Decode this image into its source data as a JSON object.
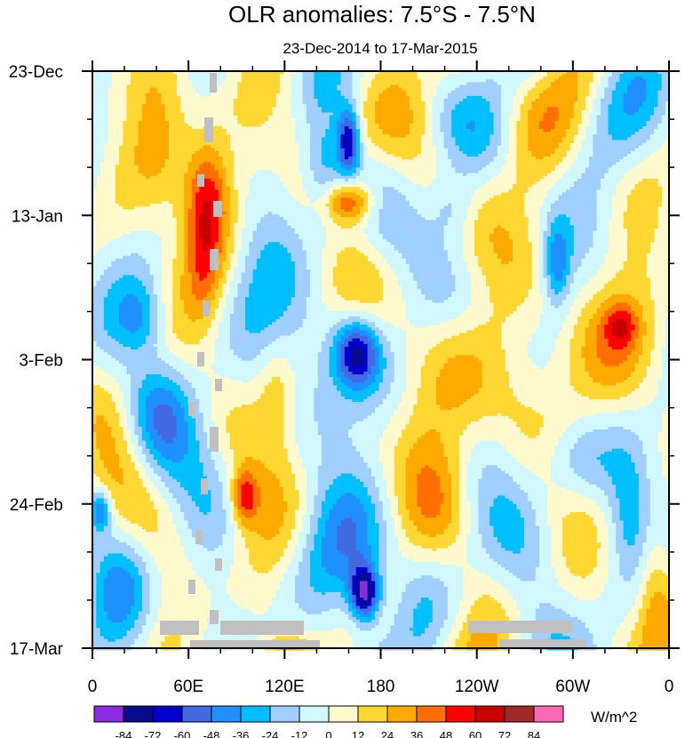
{
  "chart_data": {
    "type": "heatmap",
    "title": "OLR anomalies: 7.5°S - 7.5°N",
    "subtitle": "23-Dec-2014 to 17-Mar-2015",
    "x_ticks": [
      {
        "lon": 0,
        "label": "0"
      },
      {
        "lon": 60,
        "label": "60E"
      },
      {
        "lon": 120,
        "label": "120E"
      },
      {
        "lon": 180,
        "label": "180"
      },
      {
        "lon": 240,
        "label": "120W"
      },
      {
        "lon": 300,
        "label": "60W"
      },
      {
        "lon": 360,
        "label": "0"
      }
    ],
    "xlim": [
      0,
      360
    ],
    "y_ticks": [
      {
        "day": 0,
        "label": "23-Dec"
      },
      {
        "day": 21,
        "label": "13-Jan"
      },
      {
        "day": 42,
        "label": "3-Feb"
      },
      {
        "day": 63,
        "label": "24-Feb"
      },
      {
        "day": 84,
        "label": "17-Mar"
      }
    ],
    "ylim_days": [
      0,
      84
    ],
    "units": "W/m^2",
    "colorbar": {
      "levels": [
        -84,
        -72,
        -60,
        -48,
        -36,
        -24,
        -12,
        0,
        12,
        24,
        36,
        48,
        60,
        72,
        84
      ],
      "labels": [
        "-84",
        "-72",
        "-60",
        "-48",
        "-36",
        "-24",
        "-12",
        "0",
        "12",
        "24",
        "36",
        "48",
        "60",
        "72",
        "84"
      ],
      "colors": [
        "#8b2be2",
        "#0a0a8c",
        "#0000cd",
        "#4169e1",
        "#1e90ff",
        "#00bfff",
        "#a0cfff",
        "#d2f8ff",
        "#fffacd",
        "#ffd732",
        "#ffaa00",
        "#ff6e00",
        "#ff0000",
        "#c80000",
        "#a02828",
        "#ff69b4"
      ]
    },
    "features": [
      {
        "name": "warm anomaly near 60E-70E",
        "lon": 70,
        "day": 18,
        "value": 48
      },
      {
        "name": "warm anomaly near 150E",
        "lon": 160,
        "day": 19,
        "value": 55
      },
      {
        "name": "cold anomaly near 160E",
        "lon": 160,
        "day": 10,
        "value": -72
      },
      {
        "name": "cold anomaly near 165E",
        "lon": 165,
        "day": 41,
        "value": -66
      },
      {
        "name": "cold anomaly near 170E",
        "lon": 170,
        "day": 76,
        "value": -84
      },
      {
        "name": "warm anomaly near 95E",
        "lon": 95,
        "day": 62,
        "value": 50
      }
    ],
    "missing_color": "#c0c0c0"
  }
}
